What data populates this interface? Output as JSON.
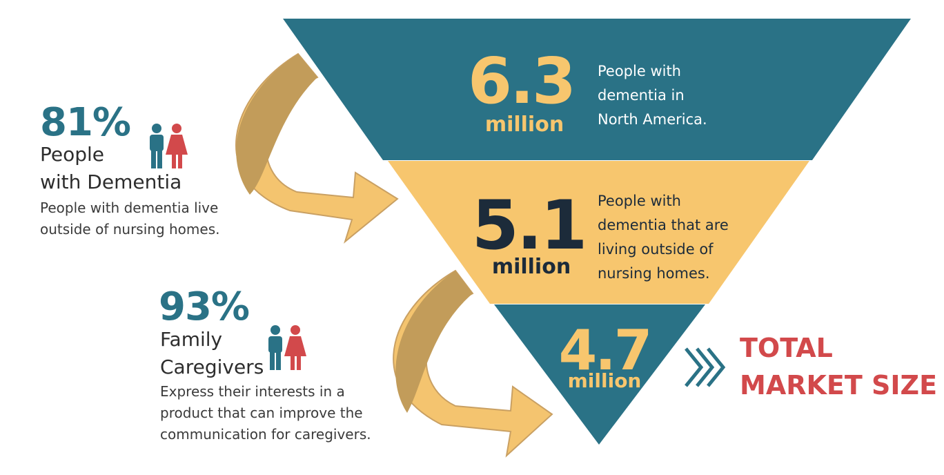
{
  "colors": {
    "teal": "#2a7286",
    "yellow": "#f7c66e",
    "dark": "#1c2b3a",
    "red": "#d2494b",
    "arrow": "#c29c5a"
  },
  "funnel": {
    "tiers": [
      {
        "value": "6.3",
        "unit": "million",
        "description": "People with\ndementia in\nNorth America."
      },
      {
        "value": "5.1",
        "unit": "million",
        "description": "People with\ndementia that are\nliving outside of\nnursing homes."
      },
      {
        "value": "4.7",
        "unit": "million"
      }
    ]
  },
  "stats": [
    {
      "percent": "81%",
      "label": "People\nwith Dementia",
      "description": "People with dementia live\noutside of nursing homes.",
      "icon": "people-icon"
    },
    {
      "percent": "93%",
      "label": "Family\nCaregivers",
      "description": "Express their interests in a\nproduct that can improve the\ncommunication for caregivers.",
      "icon": "people-icon"
    }
  ],
  "total": {
    "line1": "TOTAL",
    "line2": "MARKET SIZE",
    "icon": "double-chevron-right-icon"
  }
}
